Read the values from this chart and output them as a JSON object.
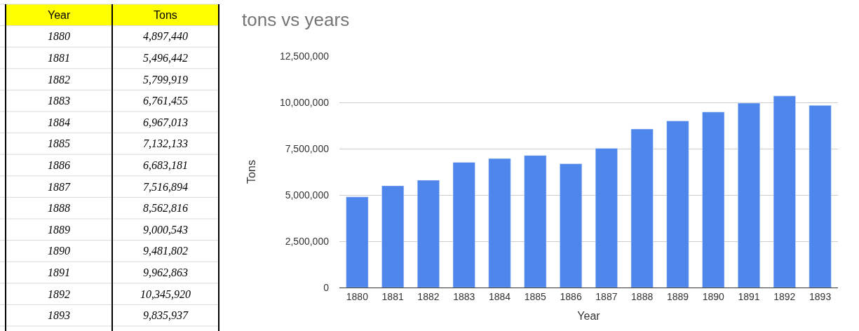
{
  "chart_data": {
    "type": "bar",
    "title": "tons vs years",
    "xlabel": "Year",
    "ylabel": "Tons",
    "categories": [
      "1880",
      "1881",
      "1882",
      "1883",
      "1884",
      "1885",
      "1886",
      "1887",
      "1888",
      "1889",
      "1890",
      "1891",
      "1892",
      "1893"
    ],
    "values": [
      4897440,
      5496442,
      5799919,
      6761455,
      6967013,
      7132133,
      6683181,
      7516894,
      8562816,
      9000543,
      9481802,
      9962863,
      10345920,
      9835937
    ],
    "color": "#4f86ec",
    "ylim": [
      0,
      12500000
    ],
    "yticks": [
      0,
      {
        "value": 2500000,
        "label": "2,500,000"
      },
      {
        "value": 5000000,
        "label": "5,000,000"
      },
      {
        "value": 7500000,
        "label": "7,500,000"
      },
      {
        "value": 10000000,
        "label": "10,000,000"
      },
      {
        "value": 12500000,
        "label": "12,500,000"
      }
    ],
    "grid": "y",
    "annotations": [
      "Year",
      "Tons",
      "1880",
      "4,897,440",
      "1881",
      "5,496,442",
      "1882",
      "5,799,919",
      "1883",
      "6,761,455",
      "1884",
      "6,967,013",
      "1885",
      "7,132,133",
      "1886",
      "6,683,181",
      "1887",
      "7,516,894",
      "1888",
      "8,562,816",
      "1889",
      "9,000,543",
      "1890",
      "9,481,802",
      "1891",
      "9,962,863",
      "1892",
      "10,345,920",
      "1893",
      "9,835,937"
    ]
  }
}
